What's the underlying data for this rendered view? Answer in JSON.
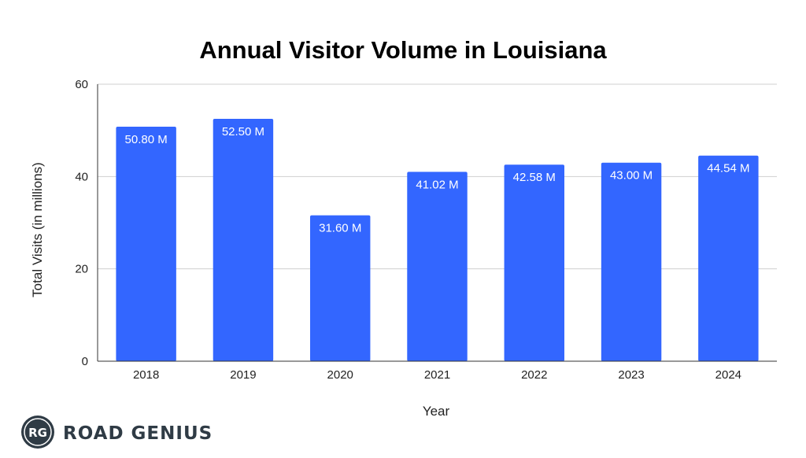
{
  "chart_data": {
    "type": "bar",
    "title": "Annual Visitor Volume in Louisiana",
    "xlabel": "Year",
    "ylabel": "Total Visits (in millions)",
    "categories": [
      "2018",
      "2019",
      "2020",
      "2021",
      "2022",
      "2023",
      "2024"
    ],
    "values": [
      50.8,
      52.5,
      31.6,
      41.02,
      42.58,
      43.0,
      44.54
    ],
    "data_labels": [
      "50.80 M",
      "52.50 M",
      "31.60 M",
      "41.02 M",
      "42.58 M",
      "43.00 M",
      "44.54 M"
    ],
    "ylim": [
      0,
      60
    ],
    "yticks": [
      0,
      20,
      40,
      60
    ],
    "grid": true,
    "bar_color": "#3366ff"
  },
  "brand": {
    "logo_initials": "RG",
    "name": "ROAD GENIUS"
  }
}
